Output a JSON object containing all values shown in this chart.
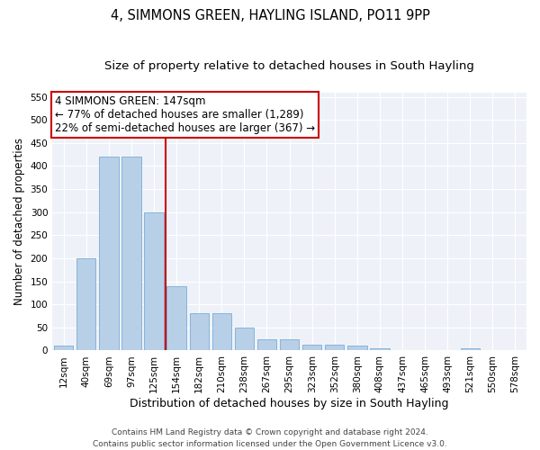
{
  "title": "4, SIMMONS GREEN, HAYLING ISLAND, PO11 9PP",
  "subtitle": "Size of property relative to detached houses in South Hayling",
  "xlabel": "Distribution of detached houses by size in South Hayling",
  "ylabel": "Number of detached properties",
  "bar_values": [
    10,
    200,
    420,
    420,
    300,
    140,
    80,
    80,
    50,
    25,
    25,
    12,
    12,
    10,
    5,
    0,
    0,
    0,
    5,
    0,
    0
  ],
  "categories": [
    "12sqm",
    "40sqm",
    "69sqm",
    "97sqm",
    "125sqm",
    "154sqm",
    "182sqm",
    "210sqm",
    "238sqm",
    "267sqm",
    "295sqm",
    "323sqm",
    "352sqm",
    "380sqm",
    "408sqm",
    "437sqm",
    "465sqm",
    "493sqm",
    "521sqm",
    "550sqm",
    "578sqm"
  ],
  "bar_color": "#b8cfe8",
  "bar_edge_color": "#7aadd4",
  "vline_x_idx": 4.5,
  "vline_color": "#cc0000",
  "annotation_text": "4 SIMMONS GREEN: 147sqm\n← 77% of detached houses are smaller (1,289)\n22% of semi-detached houses are larger (367) →",
  "annotation_box_color": "#ffffff",
  "annotation_box_edge_color": "#cc0000",
  "ylim": [
    0,
    560
  ],
  "yticks": [
    0,
    50,
    100,
    150,
    200,
    250,
    300,
    350,
    400,
    450,
    500,
    550
  ],
  "footer": "Contains HM Land Registry data © Crown copyright and database right 2024.\nContains public sector information licensed under the Open Government Licence v3.0.",
  "fig_bg": "#ffffff",
  "ax_bg": "#eef2f8",
  "grid_color": "#ffffff",
  "title_fontsize": 10.5,
  "subtitle_fontsize": 9.5,
  "ylabel_fontsize": 8.5,
  "xlabel_fontsize": 9,
  "tick_fontsize": 7.5,
  "annotation_fontsize": 8.5
}
